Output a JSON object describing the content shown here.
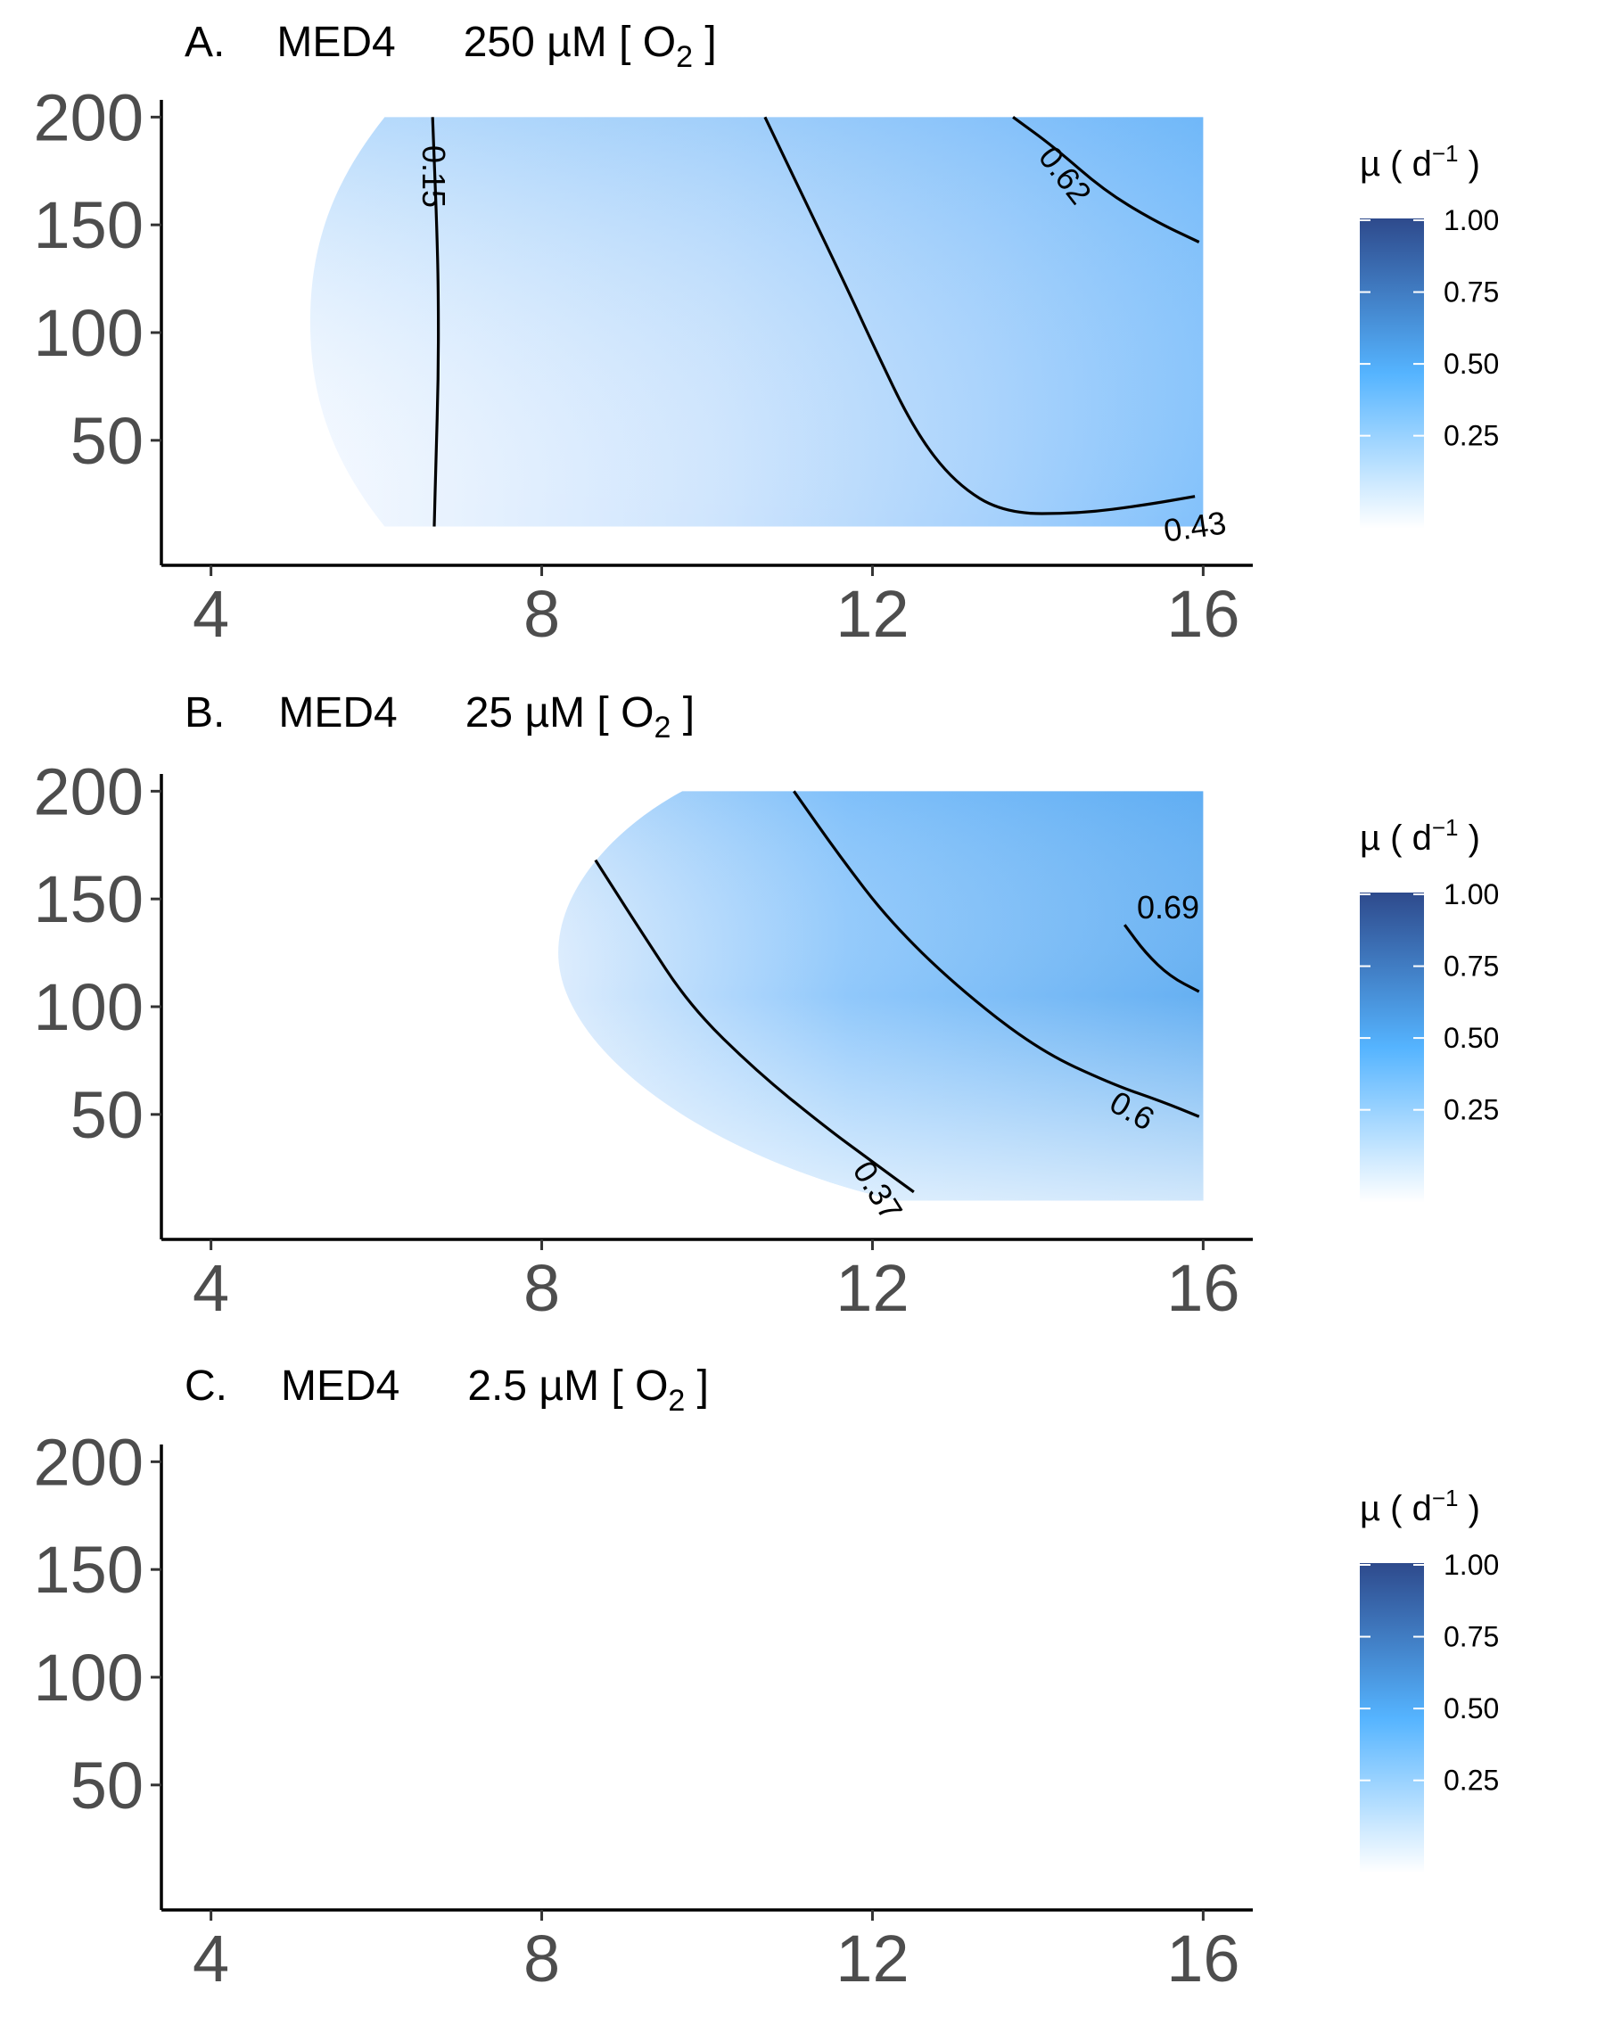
{
  "chart_data": [
    {
      "type": "heatmap",
      "panel": "A.",
      "strain": "MED4",
      "condition": "250 µM [ O",
      "condition_sub": "2",
      "condition_end": " ]",
      "x_ticks": [
        "4",
        "8",
        "12",
        "16"
      ],
      "y_ticks": [
        "50",
        "100",
        "150",
        "200"
      ],
      "xlim": [
        3.4,
        16.6
      ],
      "ylim": [
        -8,
        208
      ],
      "x_range": [
        5.2,
        16
      ],
      "y_range": [
        10,
        200
      ],
      "legend": {
        "title_mu": "µ ( d",
        "title_sup": "−1",
        "title_end": " )",
        "labels": [
          "1.00",
          "0.75",
          "0.50",
          "0.25"
        ],
        "colors": [
          "#ffffff",
          "#55b4ff",
          "#2e4a8c"
        ]
      },
      "contours": [
        {
          "level": 0.15,
          "label": "0.15",
          "points": [
            [
              6.7,
              10
            ],
            [
              6.72,
              40
            ],
            [
              6.75,
              80
            ],
            [
              6.75,
              120
            ],
            [
              6.73,
              150
            ],
            [
              6.7,
              180
            ],
            [
              6.68,
              200
            ]
          ]
        },
        {
          "level": 0.43,
          "label": "0.43",
          "points": [
            [
              10.7,
              200
            ],
            [
              11.2,
              160
            ],
            [
              11.7,
              120
            ],
            [
              12.0,
              95
            ],
            [
              12.5,
              55
            ],
            [
              13.0,
              30
            ],
            [
              13.6,
              16
            ],
            [
              14.5,
              16
            ],
            [
              15.3,
              20
            ],
            [
              15.9,
              24
            ]
          ]
        },
        {
          "level": 0.62,
          "label": "0.62",
          "points": [
            [
              13.7,
              200
            ],
            [
              14.2,
              186
            ],
            [
              14.8,
              166
            ],
            [
              15.4,
              152
            ],
            [
              15.95,
              142
            ]
          ]
        }
      ]
    },
    {
      "type": "heatmap",
      "panel": "B.",
      "strain": "MED4",
      "condition": "25 µM [ O",
      "condition_sub": "2",
      "condition_end": " ]",
      "x_ticks": [
        "4",
        "8",
        "12",
        "16"
      ],
      "y_ticks": [
        "50",
        "100",
        "150",
        "200"
      ],
      "xlim": [
        3.4,
        16.6
      ],
      "ylim": [
        -8,
        208
      ],
      "x_range": [
        8.2,
        16
      ],
      "y_range": [
        10,
        200
      ],
      "legend": {
        "title_mu": "µ ( d",
        "title_sup": "−1",
        "title_end": " )",
        "labels": [
          "1.00",
          "0.75",
          "0.50",
          "0.25"
        ],
        "colors": [
          "#ffffff",
          "#55b4ff",
          "#2e4a8c"
        ]
      },
      "contours": [
        {
          "level": 0.37,
          "label": "0.37",
          "points": [
            [
              8.65,
              168
            ],
            [
              9.2,
              135
            ],
            [
              9.8,
              100
            ],
            [
              10.6,
              70
            ],
            [
              11.4,
              45
            ],
            [
              12.0,
              28
            ],
            [
              12.5,
              14
            ]
          ]
        },
        {
          "level": 0.6,
          "label": "0.6",
          "points": [
            [
              11.05,
              200
            ],
            [
              11.6,
              170
            ],
            [
              12.2,
              140
            ],
            [
              13.0,
              110
            ],
            [
              14.0,
              80
            ],
            [
              14.9,
              64
            ],
            [
              15.5,
              56
            ],
            [
              15.95,
              49
            ]
          ]
        },
        {
          "level": 0.69,
          "label": "0.69",
          "points": [
            [
              15.05,
              138
            ],
            [
              15.3,
              125
            ],
            [
              15.6,
              114
            ],
            [
              15.95,
              107
            ]
          ]
        }
      ]
    },
    {
      "type": "heatmap",
      "panel": "C.",
      "strain": "MED4",
      "condition": "2.5 µM [ O",
      "condition_sub": "2",
      "condition_end": " ]",
      "x_ticks": [
        "4",
        "8",
        "12",
        "16"
      ],
      "y_ticks": [
        "50",
        "100",
        "150",
        "200"
      ],
      "xlim": [
        3.4,
        16.6
      ],
      "ylim": [
        -8,
        208
      ],
      "legend": {
        "title_mu": "µ ( d",
        "title_sup": "−1",
        "title_end": " )",
        "labels": [
          "1.00",
          "0.75",
          "0.50",
          "0.25"
        ],
        "colors": [
          "#ffffff",
          "#55b4ff",
          "#2e4a8c"
        ]
      },
      "contours": []
    }
  ]
}
